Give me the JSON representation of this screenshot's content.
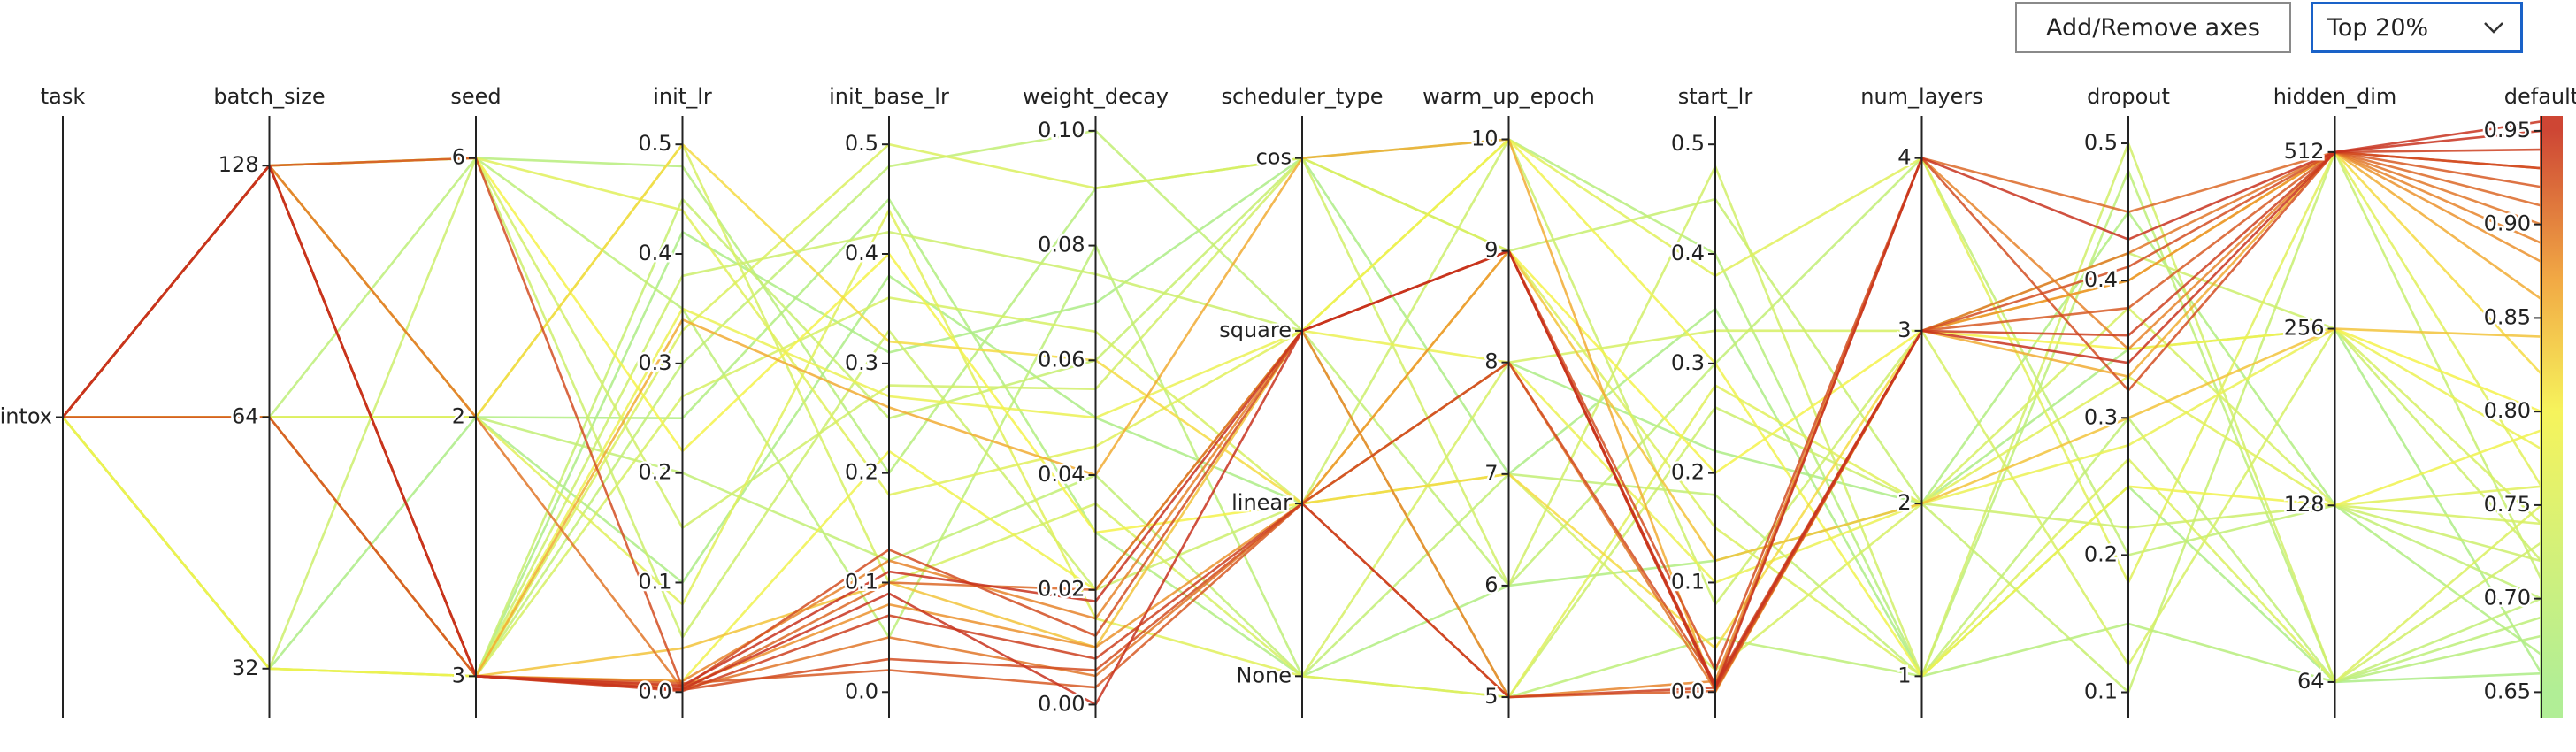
{
  "controls": {
    "add_remove_axes": "Add/Remove axes",
    "top_filter": "Top 20%"
  },
  "chart_data": {
    "type": "parallel",
    "color_by": "default",
    "colorscale": [
      [
        0.65,
        "#a8ec8a"
      ],
      [
        0.8,
        "#f5f24a"
      ],
      [
        0.87,
        "#f0a030"
      ],
      [
        0.95,
        "#c8321e"
      ]
    ],
    "axes": [
      {
        "name": "task",
        "categories": [
          "intox"
        ]
      },
      {
        "name": "batch_size",
        "log": true,
        "lim": [
          27.9,
          146.8
        ],
        "ticks": [
          32,
          64,
          128
        ]
      },
      {
        "name": "seed",
        "categories": [
          3,
          2,
          6
        ]
      },
      {
        "name": "init_lr",
        "lim": [
          -0.024,
          0.526
        ],
        "ticks": [
          {
            "value": 0,
            "label": "0.0"
          },
          0.1,
          0.2,
          0.3,
          0.4,
          0.5
        ]
      },
      {
        "name": "init_base_lr",
        "lim": [
          -0.024,
          0.526
        ],
        "ticks": [
          {
            "value": 0,
            "label": "0.0"
          },
          0.1,
          0.2,
          0.3,
          0.4,
          0.5
        ]
      },
      {
        "name": "weight_decay",
        "lim": [
          -0.0024,
          0.1026
        ],
        "ticks": [
          {
            "value": 0,
            "label": "0.00"
          },
          0.02,
          0.04,
          0.06,
          0.08,
          {
            "value": 0.1,
            "label": "0.10"
          }
        ]
      },
      {
        "name": "scheduler_type",
        "categories": [
          "None",
          "linear",
          "square",
          "cos"
        ]
      },
      {
        "name": "warm_up_epoch",
        "lim": [
          4.81,
          10.21
        ],
        "ticks": [
          5,
          6,
          7,
          8,
          9,
          10
        ]
      },
      {
        "name": "start_lr",
        "lim": [
          -0.024,
          0.526
        ],
        "ticks": [
          {
            "value": 0,
            "label": "0.0"
          },
          0.1,
          0.2,
          0.3,
          0.4,
          0.5
        ]
      },
      {
        "name": "num_layers",
        "categories": [
          1,
          2,
          3,
          4
        ]
      },
      {
        "name": "dropout",
        "lim": [
          0.081,
          0.52
        ],
        "ticks": [
          0.1,
          0.2,
          0.3,
          0.4,
          0.5
        ]
      },
      {
        "name": "hidden_dim",
        "log": true,
        "lim": [
          55.5,
          590
        ],
        "ticks": [
          64,
          128,
          256,
          512
        ]
      },
      {
        "name": "default",
        "lim": [
          0.636,
          0.958
        ],
        "ticks": [
          0.65,
          {
            "value": 0.7,
            "label": "0.70"
          },
          0.75,
          {
            "value": 0.8,
            "label": "0.80"
          },
          0.85,
          {
            "value": 0.9,
            "label": "0.90"
          },
          0.95
        ]
      }
    ],
    "lines": [
      [
        "intox",
        32,
        3,
        0.42,
        0.31,
        0.07,
        "cos",
        7,
        0.35,
        1,
        0.25,
        64,
        0.66
      ],
      [
        "intox",
        64,
        2,
        0.25,
        0.45,
        0.03,
        "None",
        6,
        0.12,
        2,
        0.45,
        128,
        0.67
      ],
      [
        "intox",
        128,
        6,
        0.48,
        0.2,
        0.09,
        "cos",
        10,
        0.4,
        1,
        0.15,
        64,
        0.68
      ],
      [
        "intox",
        32,
        2,
        0.1,
        0.38,
        0.05,
        "linear",
        8,
        0.22,
        2,
        0.35,
        256,
        0.66
      ],
      [
        "intox",
        64,
        6,
        0.35,
        0.05,
        0.08,
        "None",
        5,
        0.05,
        1,
        0.48,
        64,
        0.69
      ],
      [
        "intox",
        128,
        3,
        0.3,
        0.48,
        0.1,
        "square",
        6,
        0.3,
        4,
        0.2,
        128,
        0.7
      ],
      [
        "intox",
        64,
        3,
        0.45,
        0.25,
        0.06,
        "cos",
        9,
        0.45,
        2,
        0.1,
        512,
        0.71
      ],
      [
        "intox",
        128,
        2,
        0.2,
        0.12,
        0.04,
        "None",
        7,
        0.18,
        1,
        0.3,
        64,
        0.7
      ],
      [
        "intox",
        32,
        6,
        0.05,
        0.33,
        0.02,
        "linear",
        10,
        0.08,
        3,
        0.42,
        256,
        0.72
      ],
      [
        "intox",
        64,
        3,
        0.38,
        0.42,
        0.075,
        "square",
        5,
        0.26,
        2,
        0.22,
        128,
        0.72
      ],
      [
        "intox",
        128,
        6,
        0.15,
        0.28,
        0.055,
        "cos",
        6,
        0.48,
        1,
        0.5,
        64,
        0.73
      ],
      [
        "intox",
        64,
        2,
        0.5,
        0.1,
        0.035,
        "None",
        8,
        0.33,
        3,
        0.12,
        256,
        0.74
      ],
      [
        "intox",
        128,
        3,
        0.27,
        0.36,
        0.065,
        "linear",
        7,
        0.02,
        2,
        0.38,
        128,
        0.74
      ],
      [
        "intox",
        32,
        3,
        0.33,
        0.5,
        0.09,
        "cos",
        9,
        0.15,
        1,
        0.27,
        64,
        0.75
      ],
      [
        "intox",
        128,
        6,
        0.44,
        0.18,
        0.045,
        "square",
        10,
        0.38,
        4,
        0.18,
        512,
        0.76
      ],
      [
        "intox",
        64,
        2,
        0.08,
        0.44,
        0.015,
        "None",
        5,
        0.28,
        2,
        0.33,
        128,
        0.76
      ],
      [
        "intox",
        64,
        3,
        0.35,
        0.27,
        0.05,
        "square",
        8,
        0.1,
        2,
        0.28,
        256,
        0.78
      ],
      [
        "intox",
        128,
        6,
        0.22,
        0.4,
        0.03,
        "linear",
        9,
        0.2,
        3,
        0.35,
        256,
        0.8
      ],
      [
        "intox",
        32,
        3,
        0.01,
        0.22,
        0.02,
        "square",
        10,
        0.3,
        1,
        0.25,
        128,
        0.79
      ],
      [
        "intox",
        128,
        2,
        0.5,
        0.32,
        0.06,
        "linear",
        7,
        0.04,
        3,
        0.4,
        512,
        0.82
      ],
      [
        "intox",
        64,
        3,
        0.04,
        0.1,
        0.01,
        "square",
        9,
        0.12,
        2,
        0.3,
        256,
        0.84
      ],
      [
        "intox",
        128,
        3,
        0.34,
        0.26,
        0.04,
        "cos",
        10,
        0.0,
        3,
        0.33,
        512,
        0.86
      ],
      [
        "intox",
        128,
        3,
        0.005,
        0.08,
        0.01,
        "linear",
        9,
        0.003,
        3,
        0.4,
        512,
        0.88
      ],
      [
        "intox",
        128,
        3,
        0.01,
        0.12,
        0.015,
        "square",
        5,
        0.01,
        4,
        0.35,
        512,
        0.89
      ],
      [
        "intox",
        128,
        2,
        0.003,
        0.05,
        0.005,
        "linear",
        8,
        0.002,
        3,
        0.42,
        512,
        0.9
      ],
      [
        "intox",
        128,
        3,
        0.002,
        0.1,
        0.02,
        "square",
        9,
        0.005,
        4,
        0.45,
        512,
        0.91
      ],
      [
        "intox",
        128,
        3,
        0.008,
        0.02,
        0.003,
        "linear",
        5,
        0.001,
        3,
        0.38,
        512,
        0.92
      ],
      [
        "intox",
        128,
        6,
        0.004,
        0.13,
        0.012,
        "square",
        9,
        0.02,
        4,
        0.32,
        512,
        0.93
      ],
      [
        "intox",
        64,
        3,
        0.002,
        0.03,
        0.006,
        "linear",
        8,
        0.008,
        3,
        0.41,
        512,
        0.93
      ],
      [
        "intox",
        128,
        3,
        0.001,
        0.07,
        0.008,
        "linear",
        5,
        0.004,
        3,
        0.36,
        512,
        0.94
      ],
      [
        "intox",
        128,
        3,
        0.006,
        0.11,
        0.018,
        "square",
        9,
        0.003,
        4,
        0.43,
        512,
        0.95
      ],
      [
        "intox",
        128,
        3,
        0.003,
        0.09,
        0.0,
        "square",
        9,
        0.006,
        3,
        0.34,
        512,
        0.955
      ]
    ]
  }
}
